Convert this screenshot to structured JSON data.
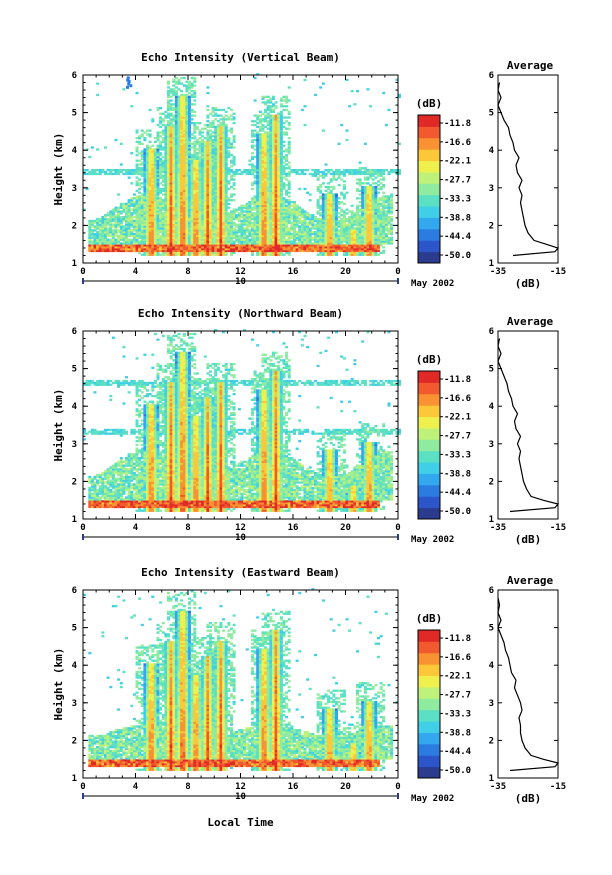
{
  "panels": [
    {
      "id": "vertical",
      "title": "Echo Intensity (Vertical Beam)",
      "avg_title": "Average"
    },
    {
      "id": "northward",
      "title": "Echo Intensity (Northward Beam)",
      "avg_title": "Average"
    },
    {
      "id": "eastward",
      "title": "Echo Intensity (Eastward Beam)",
      "avg_title": "Average"
    }
  ],
  "xlabel": "Local Time",
  "ylabel": "Height (km)",
  "colorbar_unit": "(dB)",
  "avg_xlabel": "(dB)",
  "date_label": "May 2002",
  "day_label": "10",
  "colors": {
    "colormap": [
      "#2b3c8f",
      "#2b55c8",
      "#2c7be0",
      "#34a8ee",
      "#40cfe6",
      "#5ce0c4",
      "#8eeba0",
      "#bff27a",
      "#eef04e",
      "#fcc83a",
      "#f89232",
      "#f05a2e",
      "#e02a28"
    ]
  },
  "chart_data": {
    "type": "heatmap",
    "x_ticks": [
      "0",
      "4",
      "8",
      "12",
      "16",
      "20",
      "0"
    ],
    "xlim": [
      0,
      24
    ],
    "y_ticks": [
      "1",
      "2",
      "3",
      "4",
      "5",
      "6"
    ],
    "ylim": [
      1,
      6
    ],
    "colorbar_ticks": [
      "-11.8",
      "-16.6",
      "-22.1",
      "-27.7",
      "-33.3",
      "-38.8",
      "-44.4",
      "-50.0"
    ],
    "colorbar_range": [
      -50.0,
      -11.8
    ],
    "avg_x_ticks": [
      "-35",
      "-15"
    ],
    "avg_xlim": [
      -35,
      -15
    ],
    "convective_cells": [
      {
        "t": 5.1,
        "top": 4.0
      },
      {
        "t": 6.6,
        "top": 4.6
      },
      {
        "t": 7.5,
        "top": 5.4
      },
      {
        "t": 8.5,
        "top": 3.7
      },
      {
        "t": 9.4,
        "top": 4.2
      },
      {
        "t": 10.4,
        "top": 4.6
      },
      {
        "t": 13.7,
        "top": 4.4
      },
      {
        "t": 14.6,
        "top": 4.9
      },
      {
        "t": 18.7,
        "top": 2.8
      },
      {
        "t": 20.5,
        "top": 1.9
      },
      {
        "t": 21.7,
        "top": 3.0
      }
    ],
    "average_profiles": [
      {
        "beam": "Vertical",
        "height": [
          1.2,
          1.3,
          1.4,
          1.5,
          1.6,
          1.8,
          2.0,
          2.2,
          2.4,
          2.6,
          2.8,
          3.0,
          3.2,
          3.4,
          3.6,
          3.8,
          4.0,
          4.2,
          4.4,
          4.6,
          4.8,
          5.0,
          5.2,
          5.4,
          5.6,
          5.8
        ],
        "db": [
          -30,
          -16,
          -15,
          -19,
          -23,
          -25,
          -26,
          -26.5,
          -27,
          -27.5,
          -27,
          -28,
          -27,
          -28.5,
          -29,
          -28,
          -29.5,
          -30,
          -31,
          -31.5,
          -33,
          -34,
          -35,
          -34,
          -35,
          -34.5
        ]
      },
      {
        "beam": "Northward",
        "height": [
          1.2,
          1.3,
          1.4,
          1.5,
          1.6,
          1.8,
          2.0,
          2.2,
          2.4,
          2.6,
          2.8,
          3.0,
          3.2,
          3.4,
          3.6,
          3.8,
          4.0,
          4.2,
          4.4,
          4.6,
          4.8,
          5.0,
          5.2,
          5.4,
          5.6,
          5.8
        ],
        "db": [
          -31,
          -16,
          -15,
          -20,
          -24,
          -25.5,
          -26.5,
          -27,
          -27.5,
          -28,
          -27.5,
          -28.5,
          -27.5,
          -29,
          -29.5,
          -28.5,
          -30,
          -30.5,
          -31.5,
          -32,
          -33,
          -34,
          -35,
          -34,
          -35,
          -34.5
        ]
      },
      {
        "beam": "Eastward",
        "height": [
          1.2,
          1.3,
          1.4,
          1.5,
          1.6,
          1.8,
          2.0,
          2.2,
          2.4,
          2.6,
          2.8,
          3.0,
          3.2,
          3.4,
          3.6,
          3.8,
          4.0,
          4.2,
          4.4,
          4.6,
          4.8,
          5.0,
          5.2,
          5.4,
          5.6,
          5.8
        ],
        "db": [
          -31,
          -16,
          -15,
          -20,
          -24,
          -26,
          -27,
          -27.5,
          -27.5,
          -28,
          -27,
          -27.5,
          -28.5,
          -29.5,
          -29,
          -30.5,
          -31,
          -31.5,
          -32.5,
          -33,
          -34,
          -35,
          -34,
          -35,
          -34.5,
          -35
        ]
      }
    ]
  }
}
